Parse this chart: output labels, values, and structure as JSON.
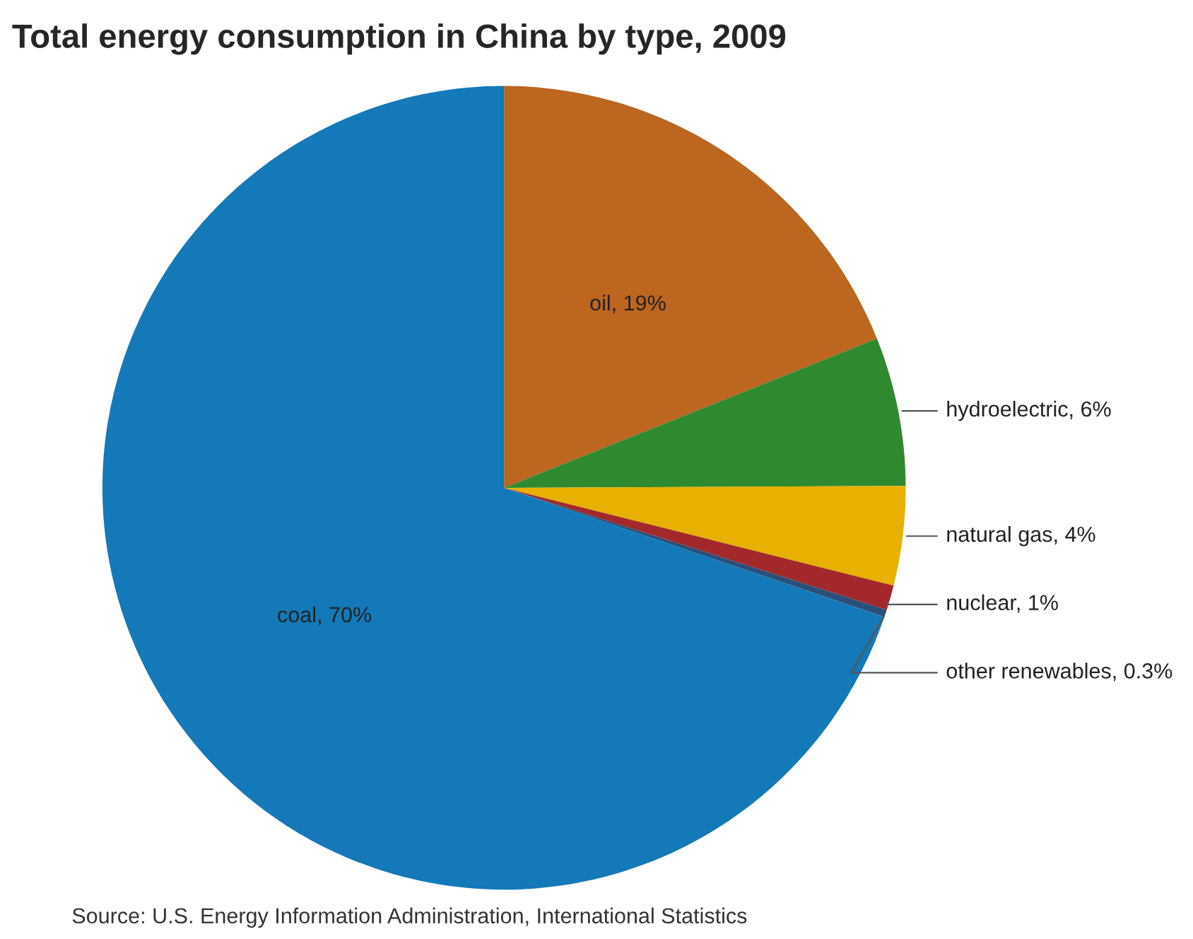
{
  "chart_data": {
    "type": "pie",
    "title": "Total energy consumption in China by type, 2009",
    "categories": [
      "oil",
      "hydroelectric",
      "natural gas",
      "nuclear",
      "other renewables",
      "coal"
    ],
    "values": [
      19,
      6,
      4,
      1,
      0.3,
      70
    ],
    "value_labels": [
      "19%",
      "6%",
      "4%",
      "1%",
      "0.3%",
      "70%"
    ],
    "colors": [
      "#bd6620",
      "#2f8a2f",
      "#e8b000",
      "#a3282a",
      "#2a4f7a",
      "#1479b8"
    ],
    "annotations": [
      "Source: U.S. Energy Information Administration, International Statistics"
    ]
  }
}
